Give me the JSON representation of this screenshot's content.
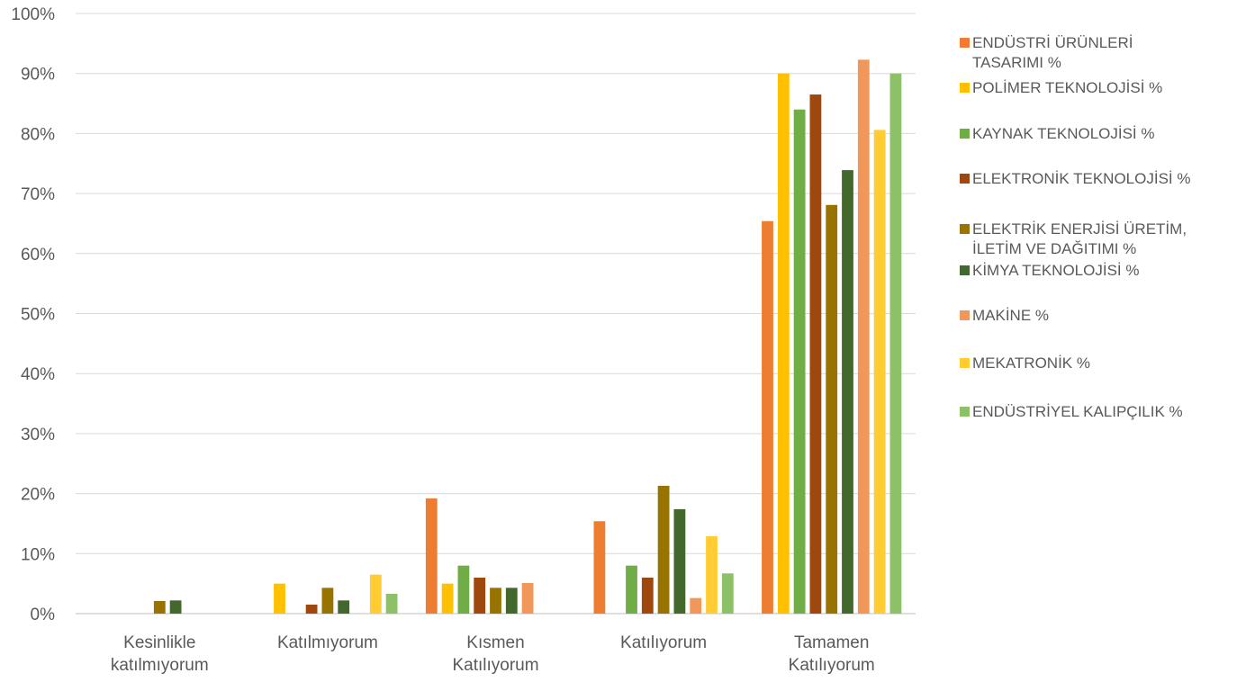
{
  "chart_data": {
    "type": "bar",
    "title": "",
    "xlabel": "",
    "ylabel": "",
    "ylim": [
      0,
      100
    ],
    "yticks": [
      "0%",
      "10%",
      "20%",
      "30%",
      "40%",
      "50%",
      "60%",
      "70%",
      "80%",
      "90%",
      "100%"
    ],
    "grid": true,
    "legend_position": "right",
    "categories": [
      [
        "Kesinlikle",
        "katılmıyorum"
      ],
      [
        "Katılmıyorum"
      ],
      [
        "Kısmen",
        "Katılıyorum"
      ],
      [
        "Katılıyorum"
      ],
      [
        "Tamamen",
        "Katılıyorum"
      ]
    ],
    "series": [
      {
        "name": "ENDÜSTRİ ÜRÜNLERİ TASARIMI %",
        "legend_lines": [
          "ENDÜSTRİ ÜRÜNLERİ",
          "TASARIMI %"
        ],
        "color": "#ED7D31",
        "values": [
          0,
          0,
          19.2,
          15.4,
          65.4
        ]
      },
      {
        "name": "POLİMER TEKNOLOJİSİ %",
        "legend_lines": [
          "POLİMER TEKNOLOJİSİ %"
        ],
        "color": "#FFC000",
        "values": [
          0,
          5.0,
          5.0,
          0,
          90.0
        ]
      },
      {
        "name": "KAYNAK TEKNOLOJİSİ %",
        "legend_lines": [
          "KAYNAK TEKNOLOJİSİ %"
        ],
        "color": "#70AD47",
        "values": [
          0,
          0,
          8.0,
          8.0,
          84.0
        ]
      },
      {
        "name": "ELEKTRONİK TEKNOLOJİSİ %",
        "legend_lines": [
          "ELEKTRONİK TEKNOLOJİSİ %"
        ],
        "color": "#9E480E",
        "values": [
          0,
          1.5,
          6.0,
          6.0,
          86.5
        ]
      },
      {
        "name": "ELEKTRİK ENERJİSİ ÜRETİM, İLETİM VE DAĞITIMI %",
        "legend_lines": [
          "ELEKTRİK ENERJİSİ ÜRETİM,",
          "İLETİM VE DAĞITIMI %"
        ],
        "color": "#997300",
        "values": [
          2.1,
          4.3,
          4.3,
          21.3,
          68.1
        ]
      },
      {
        "name": "KİMYA TEKNOLOJİSİ %",
        "legend_lines": [
          "KİMYA TEKNOLOJİSİ %"
        ],
        "color": "#43682B",
        "values": [
          2.2,
          2.2,
          4.3,
          17.4,
          73.9
        ]
      },
      {
        "name": "MAKİNE %",
        "legend_lines": [
          "MAKİNE %"
        ],
        "color": "#F1975A",
        "values": [
          0,
          0,
          5.1,
          2.6,
          92.3
        ]
      },
      {
        "name": "MEKATRONİK %",
        "legend_lines": [
          "MEKATRONİK %"
        ],
        "color": "#FFCD33",
        "values": [
          0,
          6.5,
          0,
          12.9,
          80.6
        ]
      },
      {
        "name": "ENDÜSTRİYEL KALIPÇILIK %",
        "legend_lines": [
          "ENDÜSTRİYEL KALIPÇILIK %"
        ],
        "color": "#8CC168",
        "values": [
          0,
          3.3,
          0,
          6.7,
          90.0
        ]
      }
    ]
  }
}
